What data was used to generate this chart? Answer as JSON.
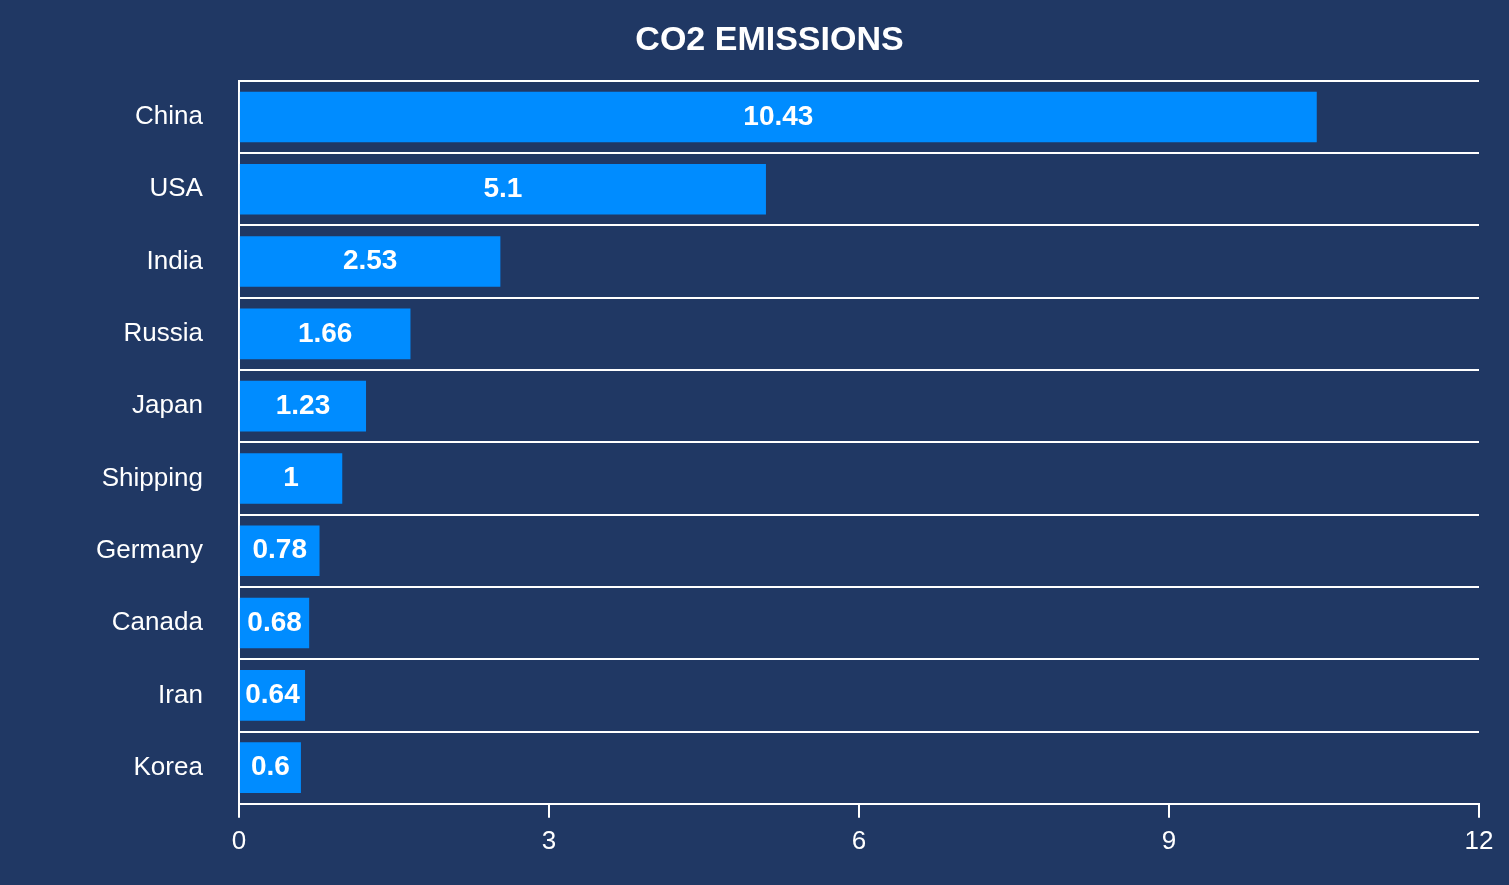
{
  "chart_data": {
    "type": "bar",
    "orientation": "horizontal",
    "title": "CO2 EMISSIONS",
    "categories": [
      "China",
      "USA",
      "India",
      "Russia",
      "Japan",
      "Shipping",
      "Germany",
      "Canada",
      "Iran",
      "Korea"
    ],
    "values": [
      10.43,
      5.1,
      2.53,
      1.66,
      1.23,
      1,
      0.78,
      0.68,
      0.64,
      0.6
    ],
    "color": "#008cff",
    "xlim": [
      0,
      12
    ],
    "xticks": [
      0,
      3,
      6,
      9,
      12
    ],
    "grid": "y",
    "data_labels": true,
    "legend": false
  }
}
